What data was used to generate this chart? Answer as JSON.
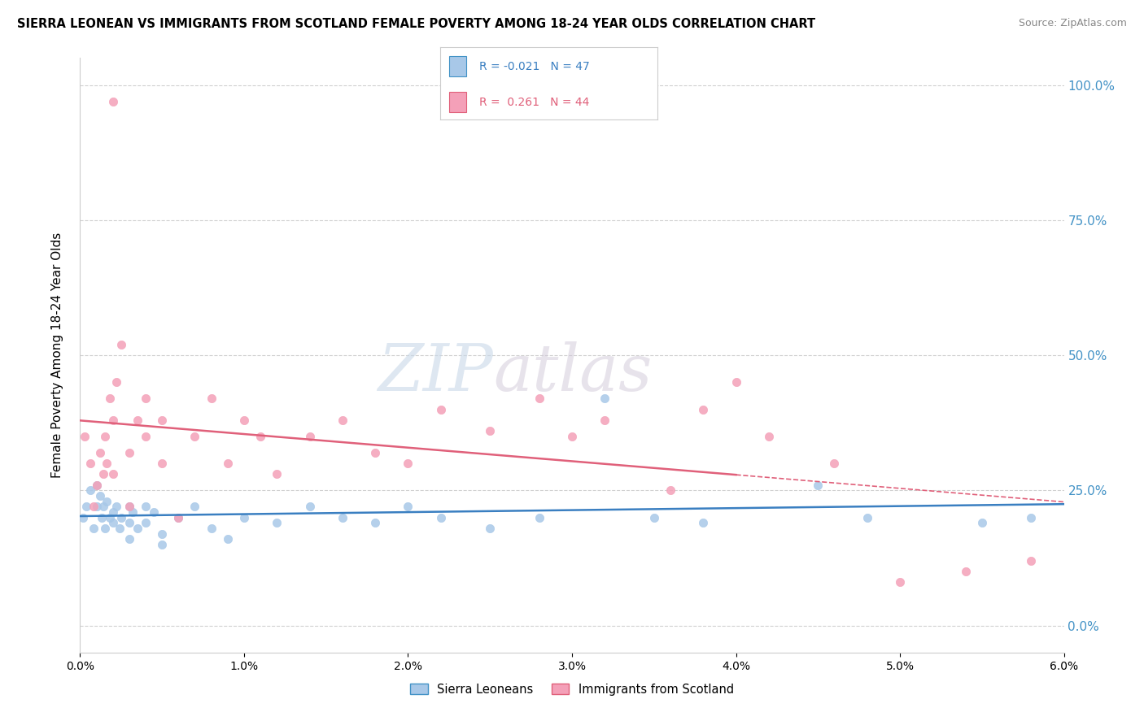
{
  "title": "SIERRA LEONEAN VS IMMIGRANTS FROM SCOTLAND FEMALE POVERTY AMONG 18-24 YEAR OLDS CORRELATION CHART",
  "source": "Source: ZipAtlas.com",
  "ylabel": "Female Poverty Among 18-24 Year Olds",
  "legend_label1": "Sierra Leoneans",
  "legend_label2": "Immigrants from Scotland",
  "R1": -0.021,
  "N1": 47,
  "R2": 0.261,
  "N2": 44,
  "color1": "#a8c8e8",
  "color2": "#f4a0b8",
  "trend1_color": "#3a7fc1",
  "trend2_color": "#e0607a",
  "xlim": [
    0.0,
    0.06
  ],
  "ylim": [
    -0.05,
    1.05
  ],
  "blue_scatter_x": [
    0.0002,
    0.0004,
    0.0006,
    0.0008,
    0.001,
    0.001,
    0.0012,
    0.0013,
    0.0014,
    0.0015,
    0.0016,
    0.0018,
    0.002,
    0.002,
    0.0022,
    0.0024,
    0.0025,
    0.003,
    0.003,
    0.003,
    0.0032,
    0.0035,
    0.004,
    0.004,
    0.0045,
    0.005,
    0.005,
    0.006,
    0.007,
    0.008,
    0.009,
    0.01,
    0.012,
    0.014,
    0.016,
    0.018,
    0.02,
    0.022,
    0.025,
    0.028,
    0.032,
    0.035,
    0.038,
    0.045,
    0.048,
    0.055,
    0.058
  ],
  "blue_scatter_y": [
    0.2,
    0.22,
    0.25,
    0.18,
    0.26,
    0.22,
    0.24,
    0.2,
    0.22,
    0.18,
    0.23,
    0.2,
    0.21,
    0.19,
    0.22,
    0.18,
    0.2,
    0.22,
    0.19,
    0.16,
    0.21,
    0.18,
    0.22,
    0.19,
    0.21,
    0.17,
    0.15,
    0.2,
    0.22,
    0.18,
    0.16,
    0.2,
    0.19,
    0.22,
    0.2,
    0.19,
    0.22,
    0.2,
    0.18,
    0.2,
    0.42,
    0.2,
    0.19,
    0.26,
    0.2,
    0.19,
    0.2
  ],
  "pink_scatter_x": [
    0.0003,
    0.0006,
    0.0008,
    0.001,
    0.0012,
    0.0014,
    0.0015,
    0.0016,
    0.0018,
    0.002,
    0.002,
    0.0022,
    0.0025,
    0.003,
    0.003,
    0.0035,
    0.004,
    0.004,
    0.005,
    0.005,
    0.006,
    0.007,
    0.008,
    0.009,
    0.01,
    0.011,
    0.012,
    0.014,
    0.016,
    0.018,
    0.02,
    0.022,
    0.025,
    0.028,
    0.03,
    0.032,
    0.036,
    0.038,
    0.04,
    0.042,
    0.046,
    0.05,
    0.054,
    0.058
  ],
  "pink_scatter_y": [
    0.35,
    0.3,
    0.22,
    0.26,
    0.32,
    0.28,
    0.35,
    0.3,
    0.42,
    0.38,
    0.28,
    0.45,
    0.52,
    0.32,
    0.22,
    0.38,
    0.35,
    0.42,
    0.3,
    0.38,
    0.2,
    0.35,
    0.42,
    0.3,
    0.38,
    0.35,
    0.28,
    0.35,
    0.38,
    0.32,
    0.3,
    0.4,
    0.36,
    0.42,
    0.35,
    0.38,
    0.25,
    0.4,
    0.45,
    0.35,
    0.3,
    0.08,
    0.1,
    0.12
  ],
  "pink_high_x": [
    0.002
  ],
  "pink_high_y": [
    0.97
  ],
  "yaxis_ticks": [
    0.0,
    0.25,
    0.5,
    0.75,
    1.0
  ],
  "yaxis_labels": [
    "0.0%",
    "25.0%",
    "50.0%",
    "75.0%",
    "100.0%"
  ],
  "xticks": [
    0.0,
    0.01,
    0.02,
    0.03,
    0.04,
    0.05,
    0.06
  ],
  "xticklabels": [
    "0.0%",
    "1.0%",
    "2.0%",
    "3.0%",
    "4.0%",
    "5.0%",
    "6.0%"
  ]
}
